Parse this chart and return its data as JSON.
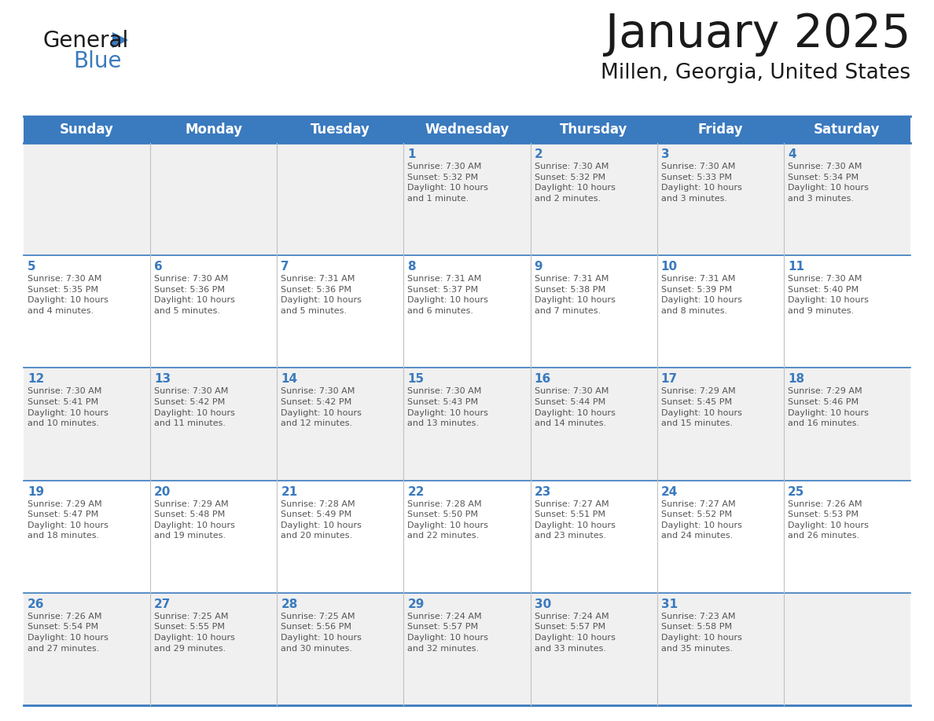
{
  "title": "January 2025",
  "subtitle": "Millen, Georgia, United States",
  "header_bg_color": "#3a7abf",
  "header_text_color": "#ffffff",
  "day_names": [
    "Sunday",
    "Monday",
    "Tuesday",
    "Wednesday",
    "Thursday",
    "Friday",
    "Saturday"
  ],
  "row_colors": [
    "#f0f0f0",
    "#ffffff"
  ],
  "grid_line_color": "#3a7abf",
  "cell_divider_color": "#c0c0c0",
  "day_number_color": "#3a7abf",
  "text_color": "#555555",
  "title_color": "#1a1a1a",
  "subtitle_color": "#1a1a1a",
  "logo_general_color": "#1a1a1a",
  "logo_blue_color": "#3a7abf",
  "logo_triangle_color": "#3a7abf",
  "calendar": [
    [
      {
        "day": 0,
        "info": ""
      },
      {
        "day": 0,
        "info": ""
      },
      {
        "day": 0,
        "info": ""
      },
      {
        "day": 1,
        "info": "Sunrise: 7:30 AM\nSunset: 5:32 PM\nDaylight: 10 hours\nand 1 minute."
      },
      {
        "day": 2,
        "info": "Sunrise: 7:30 AM\nSunset: 5:32 PM\nDaylight: 10 hours\nand 2 minutes."
      },
      {
        "day": 3,
        "info": "Sunrise: 7:30 AM\nSunset: 5:33 PM\nDaylight: 10 hours\nand 3 minutes."
      },
      {
        "day": 4,
        "info": "Sunrise: 7:30 AM\nSunset: 5:34 PM\nDaylight: 10 hours\nand 3 minutes."
      }
    ],
    [
      {
        "day": 5,
        "info": "Sunrise: 7:30 AM\nSunset: 5:35 PM\nDaylight: 10 hours\nand 4 minutes."
      },
      {
        "day": 6,
        "info": "Sunrise: 7:30 AM\nSunset: 5:36 PM\nDaylight: 10 hours\nand 5 minutes."
      },
      {
        "day": 7,
        "info": "Sunrise: 7:31 AM\nSunset: 5:36 PM\nDaylight: 10 hours\nand 5 minutes."
      },
      {
        "day": 8,
        "info": "Sunrise: 7:31 AM\nSunset: 5:37 PM\nDaylight: 10 hours\nand 6 minutes."
      },
      {
        "day": 9,
        "info": "Sunrise: 7:31 AM\nSunset: 5:38 PM\nDaylight: 10 hours\nand 7 minutes."
      },
      {
        "day": 10,
        "info": "Sunrise: 7:31 AM\nSunset: 5:39 PM\nDaylight: 10 hours\nand 8 minutes."
      },
      {
        "day": 11,
        "info": "Sunrise: 7:30 AM\nSunset: 5:40 PM\nDaylight: 10 hours\nand 9 minutes."
      }
    ],
    [
      {
        "day": 12,
        "info": "Sunrise: 7:30 AM\nSunset: 5:41 PM\nDaylight: 10 hours\nand 10 minutes."
      },
      {
        "day": 13,
        "info": "Sunrise: 7:30 AM\nSunset: 5:42 PM\nDaylight: 10 hours\nand 11 minutes."
      },
      {
        "day": 14,
        "info": "Sunrise: 7:30 AM\nSunset: 5:42 PM\nDaylight: 10 hours\nand 12 minutes."
      },
      {
        "day": 15,
        "info": "Sunrise: 7:30 AM\nSunset: 5:43 PM\nDaylight: 10 hours\nand 13 minutes."
      },
      {
        "day": 16,
        "info": "Sunrise: 7:30 AM\nSunset: 5:44 PM\nDaylight: 10 hours\nand 14 minutes."
      },
      {
        "day": 17,
        "info": "Sunrise: 7:29 AM\nSunset: 5:45 PM\nDaylight: 10 hours\nand 15 minutes."
      },
      {
        "day": 18,
        "info": "Sunrise: 7:29 AM\nSunset: 5:46 PM\nDaylight: 10 hours\nand 16 minutes."
      }
    ],
    [
      {
        "day": 19,
        "info": "Sunrise: 7:29 AM\nSunset: 5:47 PM\nDaylight: 10 hours\nand 18 minutes."
      },
      {
        "day": 20,
        "info": "Sunrise: 7:29 AM\nSunset: 5:48 PM\nDaylight: 10 hours\nand 19 minutes."
      },
      {
        "day": 21,
        "info": "Sunrise: 7:28 AM\nSunset: 5:49 PM\nDaylight: 10 hours\nand 20 minutes."
      },
      {
        "day": 22,
        "info": "Sunrise: 7:28 AM\nSunset: 5:50 PM\nDaylight: 10 hours\nand 22 minutes."
      },
      {
        "day": 23,
        "info": "Sunrise: 7:27 AM\nSunset: 5:51 PM\nDaylight: 10 hours\nand 23 minutes."
      },
      {
        "day": 24,
        "info": "Sunrise: 7:27 AM\nSunset: 5:52 PM\nDaylight: 10 hours\nand 24 minutes."
      },
      {
        "day": 25,
        "info": "Sunrise: 7:26 AM\nSunset: 5:53 PM\nDaylight: 10 hours\nand 26 minutes."
      }
    ],
    [
      {
        "day": 26,
        "info": "Sunrise: 7:26 AM\nSunset: 5:54 PM\nDaylight: 10 hours\nand 27 minutes."
      },
      {
        "day": 27,
        "info": "Sunrise: 7:25 AM\nSunset: 5:55 PM\nDaylight: 10 hours\nand 29 minutes."
      },
      {
        "day": 28,
        "info": "Sunrise: 7:25 AM\nSunset: 5:56 PM\nDaylight: 10 hours\nand 30 minutes."
      },
      {
        "day": 29,
        "info": "Sunrise: 7:24 AM\nSunset: 5:57 PM\nDaylight: 10 hours\nand 32 minutes."
      },
      {
        "day": 30,
        "info": "Sunrise: 7:24 AM\nSunset: 5:57 PM\nDaylight: 10 hours\nand 33 minutes."
      },
      {
        "day": 31,
        "info": "Sunrise: 7:23 AM\nSunset: 5:58 PM\nDaylight: 10 hours\nand 35 minutes."
      },
      {
        "day": 0,
        "info": ""
      }
    ]
  ]
}
